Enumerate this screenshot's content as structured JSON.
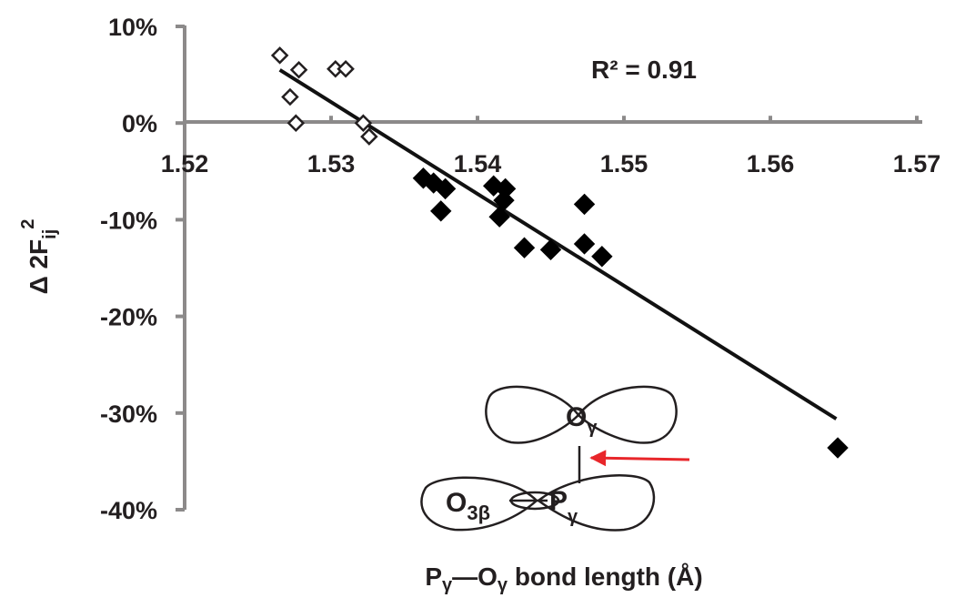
{
  "chart_data": {
    "type": "scatter",
    "xlim": [
      1.52,
      1.57
    ],
    "ylim": [
      -0.4,
      0.1
    ],
    "x_ticks": [
      "1.52",
      "1.53",
      "1.54",
      "1.55",
      "1.56",
      "1.57"
    ],
    "y_ticks": [
      "10%",
      "0%",
      "-10%",
      "-20%",
      "-30%",
      "-40%"
    ],
    "x_tick_values": [
      1.52,
      1.53,
      1.54,
      1.55,
      1.56,
      1.57
    ],
    "y_tick_values": [
      0.1,
      0.0,
      -0.1,
      -0.2,
      -0.3,
      -0.4
    ],
    "xlabel": {
      "p1": "P",
      "s1": "γ",
      "dash": "—O",
      "s2": "γ",
      "rest": " bond length (Å)"
    },
    "ylabel": {
      "pre": "Δ 2F",
      "sub": "ij",
      "sup": "2"
    },
    "r_squared_label": "R² = 0.91",
    "trendline": {
      "x": [
        1.5265,
        1.5645
      ],
      "y": [
        0.055,
        -0.306
      ]
    },
    "series": [
      {
        "marker": "open-diamond",
        "points": [
          [
            1.5265,
            0.07
          ],
          [
            1.5278,
            0.055
          ],
          [
            1.5303,
            0.056
          ],
          [
            1.531,
            0.056
          ],
          [
            1.5272,
            0.027
          ],
          [
            1.5276,
            0.0
          ],
          [
            1.5322,
            0.0
          ],
          [
            1.5326,
            -0.014
          ]
        ]
      },
      {
        "marker": "filled-diamond",
        "points": [
          [
            1.5363,
            -0.057
          ],
          [
            1.537,
            -0.062
          ],
          [
            1.5378,
            -0.068
          ],
          [
            1.5375,
            -0.091
          ],
          [
            1.5411,
            -0.065
          ],
          [
            1.5419,
            -0.068
          ],
          [
            1.5418,
            -0.08
          ],
          [
            1.5415,
            -0.097
          ],
          [
            1.5432,
            -0.129
          ],
          [
            1.545,
            -0.131
          ],
          [
            1.5473,
            -0.084
          ],
          [
            1.5473,
            -0.125
          ],
          [
            1.5485,
            -0.138
          ],
          [
            1.5646,
            -0.336
          ]
        ]
      }
    ]
  },
  "diagram": {
    "o_gamma": {
      "base": "O",
      "sub": "γ"
    },
    "o_3beta": {
      "base": "O",
      "sub": "3β"
    },
    "p_gamma": {
      "base": "P",
      "sub": "γ"
    },
    "arrow_color": "#e8262a"
  },
  "colors": {
    "axis": "#8c8a8a",
    "ink": "#231f20",
    "arrow": "#e8262a"
  }
}
